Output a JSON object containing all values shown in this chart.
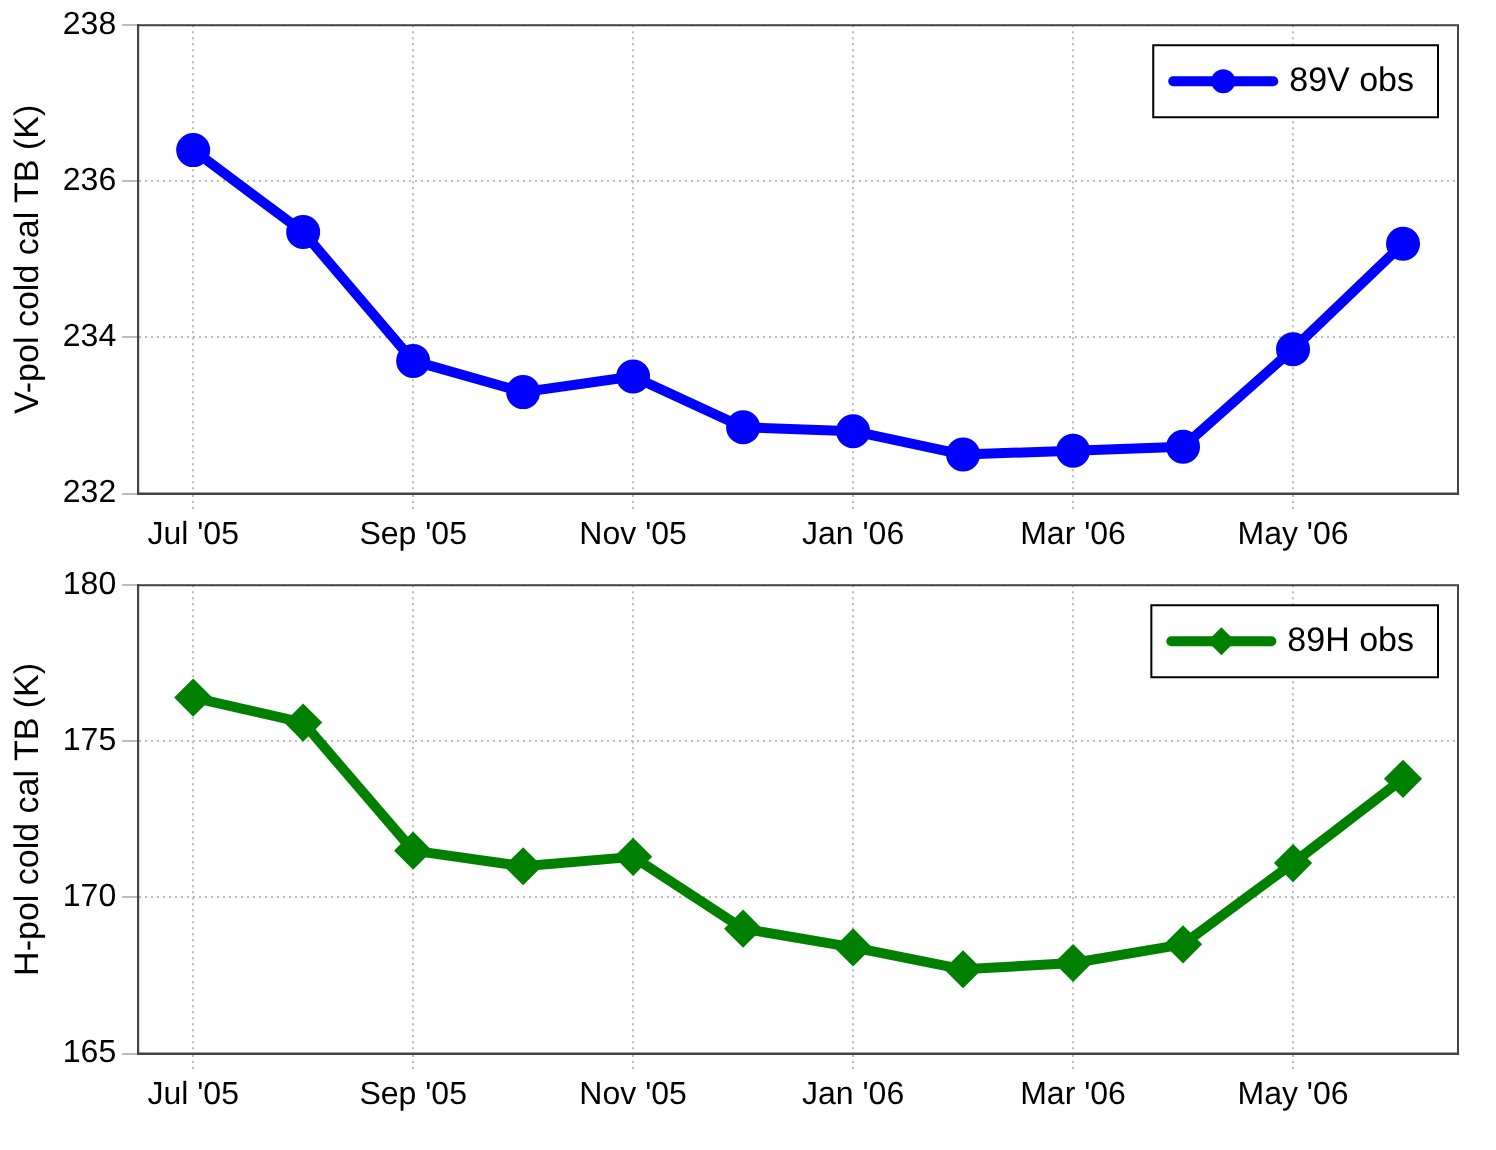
{
  "chart_data": [
    {
      "type": "line",
      "ylabel": "V-pol cold cal TB (K)",
      "categories": [
        "Jul '05",
        null,
        "Sep '05",
        null,
        "Nov '05",
        null,
        "Jan '06",
        null,
        "Mar '06",
        null,
        "May '06",
        null
      ],
      "series": [
        {
          "name": "89V obs",
          "color": "#0000ff",
          "values": [
            236.4,
            235.35,
            233.7,
            233.3,
            233.5,
            232.85,
            232.8,
            232.5,
            232.55,
            232.6,
            233.85,
            235.2
          ]
        }
      ],
      "ylim": [
        232,
        238
      ],
      "yticks": [
        232,
        234,
        236,
        238
      ],
      "grid": true,
      "legend": "top right",
      "marker": "circle",
      "line_style": "solid"
    },
    {
      "type": "line",
      "ylabel": "H-pol cold cal TB (K)",
      "categories": [
        "Jul '05",
        null,
        "Sep '05",
        null,
        "Nov '05",
        null,
        "Jan '06",
        null,
        "Mar '06",
        null,
        "May '06",
        null
      ],
      "series": [
        {
          "name": "89H obs",
          "color": "#008000",
          "values": [
            176.4,
            175.6,
            171.5,
            171.0,
            171.3,
            169.0,
            168.4,
            167.7,
            167.9,
            168.5,
            171.1,
            173.8
          ]
        }
      ],
      "ylim": [
        165,
        180
      ],
      "yticks": [
        165,
        170,
        175,
        180
      ],
      "grid": true,
      "legend": "top right",
      "marker": "diamond",
      "line_style": "solid"
    }
  ]
}
